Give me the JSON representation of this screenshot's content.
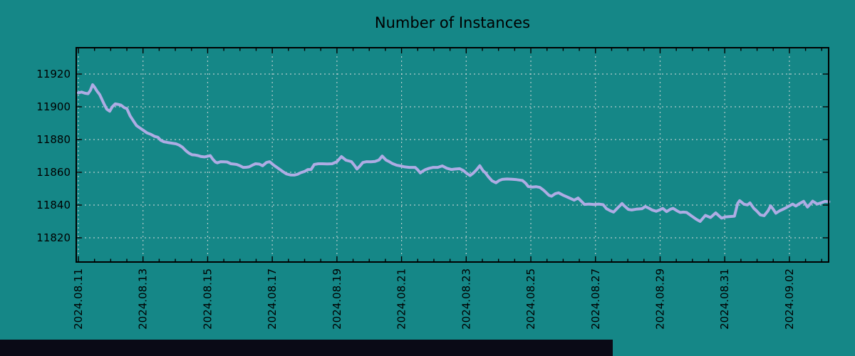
{
  "title": "Number of Instances",
  "colors": {
    "background": "#158787",
    "line": "#aeace4",
    "grid": "#dcdcdc",
    "axis": "#000000",
    "text": "#000000",
    "bottom_bar": "#0a0a16"
  },
  "chart_data": {
    "type": "line",
    "title": "Number of Instances",
    "xlabel": "",
    "ylabel": "",
    "grid": true,
    "legend": "none",
    "x_unit": "days since 2024-08-11",
    "x_tick_days": [
      0,
      2,
      4,
      6,
      8,
      10,
      12,
      14,
      16,
      18,
      20,
      22
    ],
    "x_tick_labels": [
      "2024.08.11",
      "2024.08.13",
      "2024.08.15",
      "2024.08.17",
      "2024.08.19",
      "2024.08.21",
      "2024.08.23",
      "2024.08.25",
      "2024.08.27",
      "2024.08.29",
      "2024.08.31",
      "2024.09.02"
    ],
    "x_minor_tick_interval_days": 0.5,
    "xlim_days": [
      0,
      23.2
    ],
    "y_ticks": [
      11820,
      11840,
      11860,
      11880,
      11900,
      11920
    ],
    "ylim": [
      11805,
      11936
    ],
    "series": [
      {
        "name": "Number of Instances",
        "points": [
          [
            0.0,
            11908.5
          ],
          [
            0.1,
            11909.0
          ],
          [
            0.2,
            11908.3
          ],
          [
            0.3,
            11908.0
          ],
          [
            0.37,
            11910.0
          ],
          [
            0.44,
            11913.5
          ],
          [
            0.5,
            11912.0
          ],
          [
            0.58,
            11909.5
          ],
          [
            0.66,
            11907.5
          ],
          [
            0.73,
            11904.5
          ],
          [
            0.8,
            11901.5
          ],
          [
            0.88,
            11898.5
          ],
          [
            0.97,
            11897.3
          ],
          [
            1.05,
            11900.0
          ],
          [
            1.14,
            11901.8
          ],
          [
            1.23,
            11901.5
          ],
          [
            1.32,
            11901.0
          ],
          [
            1.42,
            11899.5
          ],
          [
            1.5,
            11898.9
          ],
          [
            1.6,
            11894.5
          ],
          [
            1.7,
            11891.5
          ],
          [
            1.8,
            11888.5
          ],
          [
            1.91,
            11887.0
          ],
          [
            2.02,
            11885.5
          ],
          [
            2.13,
            11884.0
          ],
          [
            2.24,
            11883.2
          ],
          [
            2.35,
            11882.0
          ],
          [
            2.46,
            11881.4
          ],
          [
            2.55,
            11879.5
          ],
          [
            2.64,
            11878.7
          ],
          [
            2.76,
            11878.2
          ],
          [
            2.9,
            11877.8
          ],
          [
            3.02,
            11877.4
          ],
          [
            3.12,
            11876.6
          ],
          [
            3.22,
            11875.3
          ],
          [
            3.32,
            11873.3
          ],
          [
            3.42,
            11871.7
          ],
          [
            3.52,
            11870.7
          ],
          [
            3.62,
            11870.5
          ],
          [
            3.7,
            11870.2
          ],
          [
            3.8,
            11869.6
          ],
          [
            3.9,
            11869.4
          ],
          [
            4.0,
            11869.8
          ],
          [
            4.08,
            11870.2
          ],
          [
            4.16,
            11868.0
          ],
          [
            4.24,
            11866.3
          ],
          [
            4.3,
            11865.8
          ],
          [
            4.4,
            11866.5
          ],
          [
            4.5,
            11866.4
          ],
          [
            4.6,
            11866.3
          ],
          [
            4.72,
            11865.2
          ],
          [
            4.82,
            11865.0
          ],
          [
            4.9,
            11864.8
          ],
          [
            5.0,
            11864.0
          ],
          [
            5.1,
            11863.0
          ],
          [
            5.2,
            11863.1
          ],
          [
            5.28,
            11863.3
          ],
          [
            5.38,
            11864.3
          ],
          [
            5.48,
            11865.2
          ],
          [
            5.6,
            11865.0
          ],
          [
            5.7,
            11864.0
          ],
          [
            5.82,
            11866.0
          ],
          [
            5.92,
            11866.5
          ],
          [
            6.05,
            11864.3
          ],
          [
            6.2,
            11862.2
          ],
          [
            6.32,
            11860.5
          ],
          [
            6.44,
            11859.0
          ],
          [
            6.56,
            11858.4
          ],
          [
            6.68,
            11858.3
          ],
          [
            6.78,
            11858.8
          ],
          [
            6.88,
            11859.8
          ],
          [
            7.0,
            11860.5
          ],
          [
            7.1,
            11861.7
          ],
          [
            7.2,
            11861.7
          ],
          [
            7.3,
            11864.8
          ],
          [
            7.42,
            11865.2
          ],
          [
            7.55,
            11865.2
          ],
          [
            7.7,
            11865.1
          ],
          [
            7.85,
            11865.2
          ],
          [
            8.0,
            11866.5
          ],
          [
            8.14,
            11869.6
          ],
          [
            8.28,
            11867.4
          ],
          [
            8.45,
            11866.5
          ],
          [
            8.55,
            11864.0
          ],
          [
            8.62,
            11862.0
          ],
          [
            8.72,
            11864.0
          ],
          [
            8.8,
            11866.0
          ],
          [
            8.92,
            11866.5
          ],
          [
            9.05,
            11866.4
          ],
          [
            9.18,
            11866.6
          ],
          [
            9.3,
            11867.5
          ],
          [
            9.4,
            11869.9
          ],
          [
            9.52,
            11867.5
          ],
          [
            9.62,
            11866.5
          ],
          [
            9.72,
            11865.3
          ],
          [
            9.84,
            11864.4
          ],
          [
            9.96,
            11863.9
          ],
          [
            10.1,
            11863.3
          ],
          [
            10.24,
            11863.0
          ],
          [
            10.42,
            11863.0
          ],
          [
            10.5,
            11861.5
          ],
          [
            10.58,
            11859.6
          ],
          [
            10.66,
            11860.8
          ],
          [
            10.74,
            11861.7
          ],
          [
            10.86,
            11862.5
          ],
          [
            10.98,
            11863.0
          ],
          [
            11.12,
            11863.0
          ],
          [
            11.26,
            11863.9
          ],
          [
            11.4,
            11862.5
          ],
          [
            11.54,
            11861.7
          ],
          [
            11.66,
            11862.0
          ],
          [
            11.8,
            11862.2
          ],
          [
            11.92,
            11861.0
          ],
          [
            12.02,
            11859.3
          ],
          [
            12.12,
            11858.0
          ],
          [
            12.22,
            11859.5
          ],
          [
            12.32,
            11861.5
          ],
          [
            12.42,
            11864.0
          ],
          [
            12.52,
            11861.0
          ],
          [
            12.6,
            11859.6
          ],
          [
            12.68,
            11857.4
          ],
          [
            12.8,
            11854.8
          ],
          [
            12.92,
            11853.6
          ],
          [
            13.02,
            11855.0
          ],
          [
            13.12,
            11855.7
          ],
          [
            13.26,
            11855.9
          ],
          [
            13.42,
            11855.8
          ],
          [
            13.56,
            11855.5
          ],
          [
            13.74,
            11855.0
          ],
          [
            13.84,
            11853.3
          ],
          [
            13.92,
            11851.3
          ],
          [
            14.04,
            11851.0
          ],
          [
            14.16,
            11851.2
          ],
          [
            14.28,
            11850.8
          ],
          [
            14.4,
            11849.0
          ],
          [
            14.56,
            11846.0
          ],
          [
            14.64,
            11845.4
          ],
          [
            14.76,
            11847.0
          ],
          [
            14.86,
            11847.5
          ],
          [
            15.0,
            11846.0
          ],
          [
            15.14,
            11844.8
          ],
          [
            15.34,
            11843.0
          ],
          [
            15.46,
            11844.3
          ],
          [
            15.58,
            11842.0
          ],
          [
            15.66,
            11840.4
          ],
          [
            15.8,
            11840.6
          ],
          [
            15.96,
            11840.3
          ],
          [
            16.1,
            11840.6
          ],
          [
            16.24,
            11840.2
          ],
          [
            16.34,
            11837.8
          ],
          [
            16.46,
            11836.5
          ],
          [
            16.56,
            11835.7
          ],
          [
            16.7,
            11838.5
          ],
          [
            16.82,
            11840.9
          ],
          [
            16.92,
            11839.0
          ],
          [
            17.02,
            11837.3
          ],
          [
            17.12,
            11837.0
          ],
          [
            17.26,
            11837.5
          ],
          [
            17.44,
            11837.8
          ],
          [
            17.54,
            11839.1
          ],
          [
            17.66,
            11838.0
          ],
          [
            17.76,
            11836.9
          ],
          [
            17.88,
            11836.2
          ],
          [
            17.98,
            11837.0
          ],
          [
            18.08,
            11838.0
          ],
          [
            18.2,
            11836.0
          ],
          [
            18.32,
            11837.5
          ],
          [
            18.4,
            11838.0
          ],
          [
            18.52,
            11836.5
          ],
          [
            18.62,
            11835.5
          ],
          [
            18.72,
            11835.7
          ],
          [
            18.82,
            11835.5
          ],
          [
            18.96,
            11833.5
          ],
          [
            19.12,
            11831.3
          ],
          [
            19.24,
            11830.0
          ],
          [
            19.4,
            11833.7
          ],
          [
            19.56,
            11832.4
          ],
          [
            19.72,
            11835.2
          ],
          [
            19.9,
            11832.0
          ],
          [
            20.02,
            11832.8
          ],
          [
            20.16,
            11833.0
          ],
          [
            20.3,
            11833.2
          ],
          [
            20.4,
            11841.0
          ],
          [
            20.46,
            11842.7
          ],
          [
            20.6,
            11840.5
          ],
          [
            20.7,
            11840.1
          ],
          [
            20.78,
            11841.3
          ],
          [
            20.9,
            11838.0
          ],
          [
            20.98,
            11836.5
          ],
          [
            21.1,
            11834.0
          ],
          [
            21.22,
            11833.5
          ],
          [
            21.34,
            11836.5
          ],
          [
            21.42,
            11839.5
          ],
          [
            21.5,
            11837.5
          ],
          [
            21.58,
            11835.0
          ],
          [
            21.7,
            11836.5
          ],
          [
            21.78,
            11837.2
          ],
          [
            21.9,
            11838.4
          ],
          [
            22.0,
            11839.5
          ],
          [
            22.1,
            11840.6
          ],
          [
            22.2,
            11839.4
          ],
          [
            22.32,
            11841.0
          ],
          [
            22.44,
            11842.3
          ],
          [
            22.56,
            11838.8
          ],
          [
            22.66,
            11841.0
          ],
          [
            22.72,
            11842.4
          ],
          [
            22.86,
            11840.6
          ],
          [
            23.0,
            11841.5
          ],
          [
            23.1,
            11842.2
          ],
          [
            23.22,
            11842.0
          ]
        ]
      }
    ]
  }
}
